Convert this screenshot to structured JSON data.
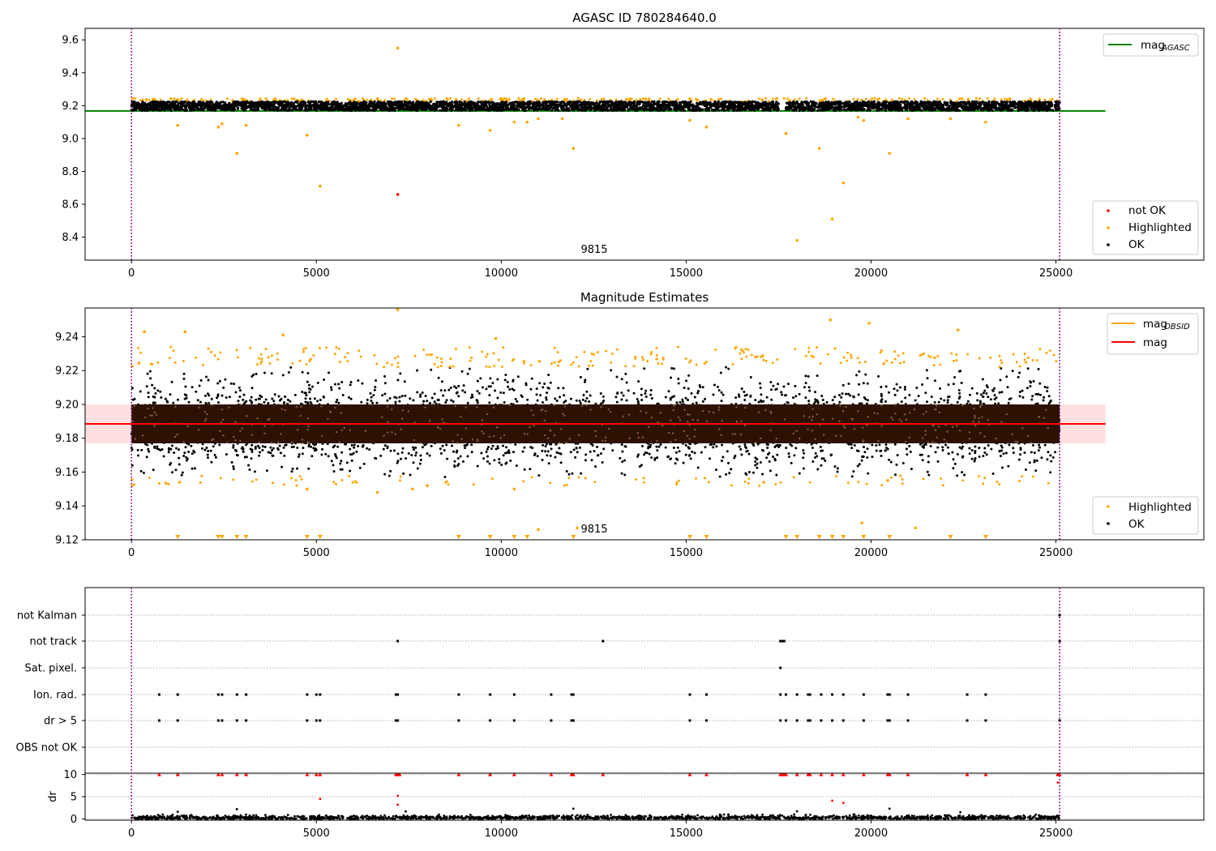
{
  "chart_data": [
    {
      "type": "scatter",
      "title": "AGASC ID 780284640.0",
      "xlim": [
        -1254,
        29000
      ],
      "ylim": [
        8.26,
        9.67
      ],
      "xticks": [
        0,
        5000,
        10000,
        15000,
        20000,
        25000
      ],
      "yticks": [
        8.4,
        8.6,
        8.8,
        9.0,
        9.2,
        9.4,
        9.6
      ],
      "reference_line": {
        "label": "mag",
        "subscript": "AGASC",
        "y": 9.168,
        "x_range": [
          -1254,
          26340
        ],
        "color": "#008000"
      },
      "vlines": [
        0,
        25100
      ],
      "annotation": {
        "text": "9815",
        "x": 12600,
        "y": 8.32
      },
      "band": {
        "y_low": 9.17,
        "y_high": 9.225,
        "x_range": [
          0,
          25100
        ]
      },
      "series": [
        {
          "name": "not OK",
          "color": "#ff0000",
          "points": [
            [
              7200,
              8.66
            ]
          ]
        },
        {
          "name": "Highlighted",
          "color": "#ffa500",
          "points": [
            [
              7200,
              9.55
            ],
            [
              1250,
              9.08
            ],
            [
              2350,
              9.07
            ],
            [
              2450,
              9.09
            ],
            [
              2850,
              8.91
            ],
            [
              3100,
              9.08
            ],
            [
              4750,
              9.02
            ],
            [
              5100,
              8.71
            ],
            [
              8850,
              9.08
            ],
            [
              9700,
              9.05
            ],
            [
              10350,
              9.1
            ],
            [
              10700,
              9.1
            ],
            [
              11000,
              9.12
            ],
            [
              11650,
              9.12
            ],
            [
              11950,
              8.94
            ],
            [
              15100,
              9.11
            ],
            [
              15550,
              9.07
            ],
            [
              17700,
              9.03
            ],
            [
              18600,
              8.94
            ],
            [
              18000,
              8.38
            ],
            [
              18950,
              8.51
            ],
            [
              19250,
              8.73
            ],
            [
              19800,
              9.11
            ],
            [
              20500,
              8.91
            ],
            [
              21000,
              9.12
            ],
            [
              22150,
              9.12
            ],
            [
              23100,
              9.1
            ],
            [
              19650,
              9.13
            ]
          ]
        },
        {
          "name": "OK",
          "color": "#000000",
          "points": []
        }
      ],
      "legends": [
        {
          "position": "upper-right",
          "entries": [
            "mag_AGASC"
          ]
        },
        {
          "position": "lower-right",
          "entries": [
            "not OK",
            "Highlighted",
            "OK"
          ]
        }
      ]
    },
    {
      "type": "scatter",
      "title": "Magnitude Estimates",
      "xlim": [
        -1254,
        29000
      ],
      "ylim": [
        9.12,
        9.257
      ],
      "xticks": [
        0,
        5000,
        10000,
        15000,
        20000,
        25000
      ],
      "yticks": [
        9.12,
        9.14,
        9.16,
        9.18,
        9.2,
        9.22,
        9.24
      ],
      "mean_line": {
        "label": "mag",
        "y": 9.1885,
        "x_range": [
          -1254,
          26340
        ],
        "color": "#ff0000"
      },
      "std_band": {
        "y_low": 9.177,
        "y_high": 9.2,
        "color": "#ffcccc"
      },
      "vlines": [
        0,
        25100
      ],
      "annotation": {
        "text": "9815",
        "x": 12600,
        "y": 9.1225
      },
      "core_band": {
        "y_low": 9.177,
        "y_high": 9.2
      },
      "series": [
        {
          "name": "Highlighted",
          "color": "#ffa500",
          "points": [
            [
              7200,
              9.256
            ],
            [
              350,
              9.243
            ],
            [
              1450,
              9.243
            ],
            [
              4100,
              9.241
            ],
            [
              9850,
              9.239
            ],
            [
              18900,
              9.25
            ],
            [
              19950,
              9.248
            ],
            [
              22350,
              9.244
            ],
            [
              6650,
              9.148
            ],
            [
              10350,
              9.15
            ],
            [
              4750,
              9.15
            ],
            [
              7600,
              9.15
            ],
            [
              1300,
              9.154
            ],
            [
              17100,
              9.154
            ],
            [
              20450,
              9.155
            ],
            [
              12050,
              9.127
            ],
            [
              19750,
              9.13
            ],
            [
              21200,
              9.127
            ],
            [
              11000,
              9.126
            ],
            [
              8000,
              9.152
            ]
          ]
        },
        {
          "name": "OK",
          "color": "#000000",
          "points": []
        }
      ],
      "clipped_markers": [
        1250,
        2350,
        2450,
        2850,
        3100,
        4750,
        5100,
        8850,
        9700,
        10350,
        10700,
        11950,
        15100,
        15550,
        17700,
        18000,
        18600,
        18950,
        19250,
        19800,
        20500,
        22150,
        23100
      ],
      "mag_obsid_label": {
        "label": "mag",
        "subscript": "OBSID",
        "color": "#ffa500"
      },
      "legends": [
        {
          "position": "upper-right",
          "entries": [
            "mag_OBSID",
            "mag"
          ]
        },
        {
          "position": "lower-right",
          "entries": [
            "Highlighted",
            "OK"
          ]
        }
      ]
    },
    {
      "type": "scatter",
      "title": "",
      "xlim": [
        -1254,
        29000
      ],
      "rows": [
        "not Kalman",
        "not track",
        "Sat. pixel.",
        "Ion. rad.",
        "dr > 5",
        "OBS not OK"
      ],
      "flag_points": {
        "not Kalman": [
          25100
        ],
        "not track": [
          7200,
          12750,
          17550,
          17600,
          17650,
          25100
        ],
        "Sat. pixel.": [
          17550
        ],
        "Ion. rad.": [
          750,
          1250,
          2350,
          2450,
          2850,
          3100,
          4750,
          5000,
          5100,
          7150,
          7200,
          8850,
          9700,
          10350,
          11350,
          11900,
          11950,
          15100,
          15550,
          17550,
          17700,
          18000,
          18300,
          18350,
          18650,
          18950,
          19250,
          19800,
          20450,
          20500,
          21000,
          22600,
          23100
        ],
        "dr > 5": [
          750,
          1250,
          2350,
          2450,
          2850,
          3100,
          4750,
          5000,
          5100,
          7150,
          7200,
          8850,
          9700,
          10350,
          11350,
          11900,
          11950,
          15100,
          15550,
          17550,
          17700,
          18000,
          18300,
          18350,
          18650,
          18950,
          19250,
          19800,
          20450,
          20500,
          21000,
          22600,
          23100,
          25100
        ],
        "OBS not OK": []
      },
      "dr_panel": {
        "ylabel": "dr",
        "yticks": [
          0,
          5,
          10
        ],
        "ylim": [
          -0.3,
          10.3
        ],
        "capped_red": [
          750,
          1250,
          2350,
          2450,
          2850,
          3100,
          4750,
          5000,
          5100,
          7150,
          7200,
          7250,
          8850,
          9700,
          10350,
          11350,
          11900,
          11950,
          12750,
          15100,
          15550,
          17550,
          17600,
          17650,
          17700,
          18000,
          18300,
          18350,
          18650,
          18950,
          19250,
          19800,
          20450,
          20500,
          21000,
          22600,
          23100,
          25050,
          25100
        ],
        "outliers": [
          [
            5100,
            4.5,
            "#ff0000"
          ],
          [
            7200,
            5.2,
            "#ff0000"
          ],
          [
            7200,
            3.2,
            "#ff0000"
          ],
          [
            18950,
            4.1,
            "#ff0000"
          ],
          [
            19250,
            3.6,
            "#ff0000"
          ],
          [
            25050,
            8.2,
            "#ff0000"
          ],
          [
            1250,
            1.6,
            "#000000"
          ],
          [
            2850,
            2.2,
            "#000000"
          ],
          [
            11950,
            2.3,
            "#000000"
          ],
          [
            18000,
            1.7,
            "#000000"
          ],
          [
            20500,
            2.3,
            "#000000"
          ]
        ]
      }
    }
  ]
}
